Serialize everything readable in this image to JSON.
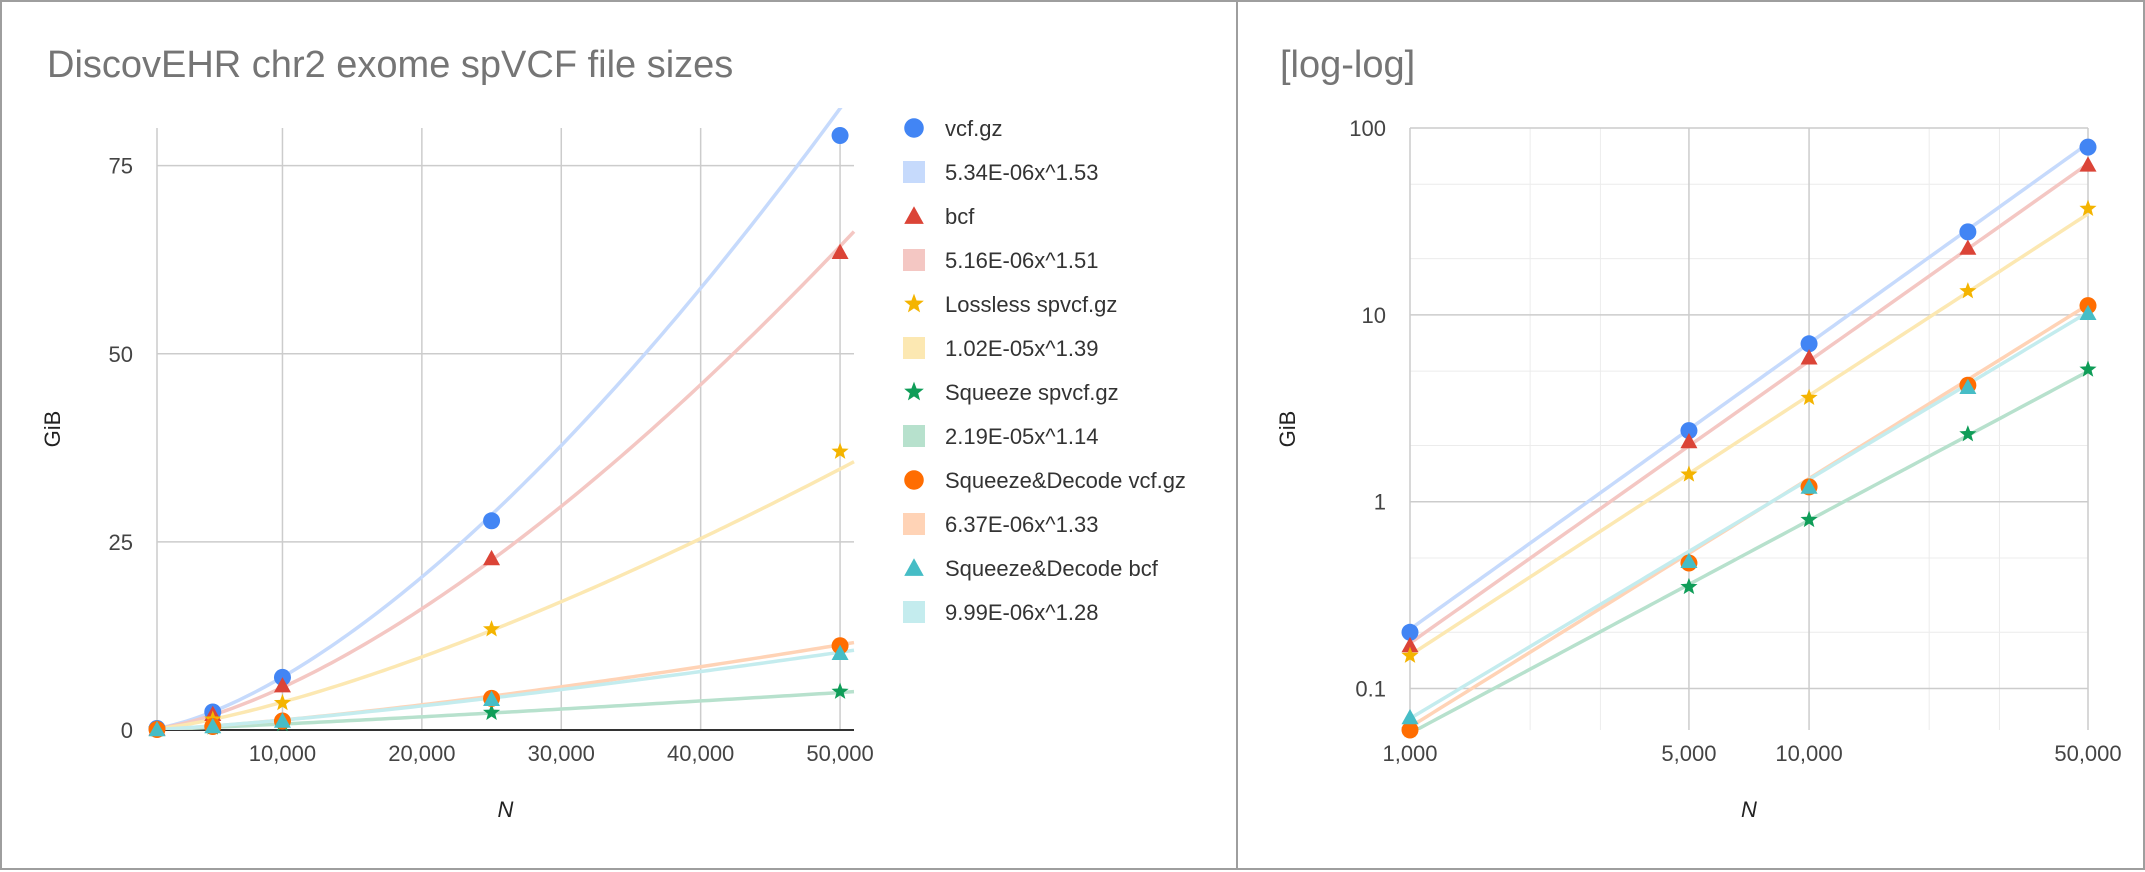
{
  "chart_data": [
    {
      "type": "scatter",
      "title": "DiscovEHR chr2 exome spVCF file sizes",
      "xlabel": "N",
      "ylabel": "GiB",
      "xscale": "linear",
      "yscale": "linear",
      "xlim": [
        1000,
        51000
      ],
      "ylim": [
        0,
        80
      ],
      "xticks": [
        10000,
        20000,
        30000,
        40000,
        50000
      ],
      "xtick_labels": [
        "10,000",
        "20,000",
        "30,000",
        "40,000",
        "50,000"
      ],
      "yticks": [
        0,
        25,
        50,
        75
      ],
      "ytick_labels": [
        "0",
        "25",
        "50",
        "75"
      ],
      "grid": true,
      "legend_position": "right",
      "x": [
        1000,
        5000,
        10000,
        25000,
        50000
      ],
      "series": [
        {
          "name": "vcf.gz",
          "marker": "circle",
          "color": "#4285f4",
          "values": [
            0.2,
            2.4,
            7.0,
            27.8,
            79
          ]
        },
        {
          "name": "bcf",
          "marker": "triangle",
          "color": "#db4437",
          "values": [
            0.17,
            2.1,
            5.9,
            22.8,
            63.5
          ]
        },
        {
          "name": "Lossless spvcf.gz",
          "marker": "star",
          "color": "#f4b400",
          "values": [
            0.15,
            1.4,
            3.6,
            13.4,
            37
          ]
        },
        {
          "name": "Squeeze spvcf.gz",
          "marker": "star",
          "color": "#0f9d58",
          "values": [
            0.06,
            0.35,
            0.8,
            2.3,
            5.1
          ]
        },
        {
          "name": "Squeeze&Decode vcf.gz",
          "marker": "circle",
          "color": "#ff6d01",
          "values": [
            0.06,
            0.47,
            1.2,
            4.2,
            11.2
          ]
        },
        {
          "name": "Squeeze&Decode bcf",
          "marker": "triangle",
          "color": "#46bdc6",
          "values": [
            0.07,
            0.48,
            1.2,
            4.1,
            10.2
          ]
        }
      ],
      "trendlines": [
        {
          "name": "5.34E-06x^1.53",
          "coef": 5.34e-06,
          "exp": 1.53,
          "color": "#c6dafc"
        },
        {
          "name": "5.16E-06x^1.51",
          "coef": 5.16e-06,
          "exp": 1.51,
          "color": "#f4c7c3"
        },
        {
          "name": "1.02E-05x^1.39",
          "coef": 1.02e-05,
          "exp": 1.39,
          "color": "#fce8b2"
        },
        {
          "name": "2.19E-05x^1.14",
          "coef": 2.19e-05,
          "exp": 1.14,
          "color": "#b7e1cd"
        },
        {
          "name": "6.37E-06x^1.33",
          "coef": 6.37e-06,
          "exp": 1.33,
          "color": "#ffd3b6"
        },
        {
          "name": "9.99E-06x^1.28",
          "coef": 9.99e-06,
          "exp": 1.28,
          "color": "#c4ecee"
        }
      ]
    },
    {
      "type": "scatter",
      "title": "[log-log]",
      "xlabel": "N",
      "ylabel": "GiB",
      "xscale": "log",
      "yscale": "log",
      "xlim": [
        1000,
        50000
      ],
      "ylim": [
        0.06,
        100
      ],
      "xticks": [
        1000,
        5000,
        10000,
        50000
      ],
      "xtick_labels": [
        "1,000",
        "5,000",
        "10,000",
        "50,000"
      ],
      "yticks": [
        0.1,
        1,
        10,
        100
      ],
      "ytick_labels": [
        "0.1",
        "1",
        "10",
        "100"
      ],
      "grid": true,
      "legend_position": "none",
      "x": [
        1000,
        5000,
        10000,
        25000,
        50000
      ],
      "series": [
        {
          "marker": "circle",
          "color": "#4285f4",
          "values": [
            0.2,
            2.4,
            7.0,
            27.8,
            79
          ]
        },
        {
          "marker": "triangle",
          "color": "#db4437",
          "values": [
            0.17,
            2.1,
            5.9,
            22.8,
            63.5
          ]
        },
        {
          "marker": "star",
          "color": "#f4b400",
          "values": [
            0.15,
            1.4,
            3.6,
            13.4,
            37
          ]
        },
        {
          "marker": "star",
          "color": "#0f9d58",
          "values": [
            0.06,
            0.35,
            0.8,
            2.3,
            5.1
          ]
        },
        {
          "marker": "circle",
          "color": "#ff6d01",
          "values": [
            0.06,
            0.47,
            1.2,
            4.2,
            11.2
          ]
        },
        {
          "marker": "triangle",
          "color": "#46bdc6",
          "values": [
            0.07,
            0.48,
            1.2,
            4.1,
            10.2
          ]
        }
      ],
      "trendlines": [
        {
          "coef": 5.34e-06,
          "exp": 1.53,
          "color": "#c6dafc"
        },
        {
          "coef": 5.16e-06,
          "exp": 1.51,
          "color": "#f4c7c3"
        },
        {
          "coef": 1.02e-05,
          "exp": 1.39,
          "color": "#fce8b2"
        },
        {
          "coef": 2.19e-05,
          "exp": 1.14,
          "color": "#b7e1cd"
        },
        {
          "coef": 6.37e-06,
          "exp": 1.33,
          "color": "#ffd3b6"
        },
        {
          "coef": 9.99e-06,
          "exp": 1.28,
          "color": "#c4ecee"
        }
      ]
    }
  ]
}
